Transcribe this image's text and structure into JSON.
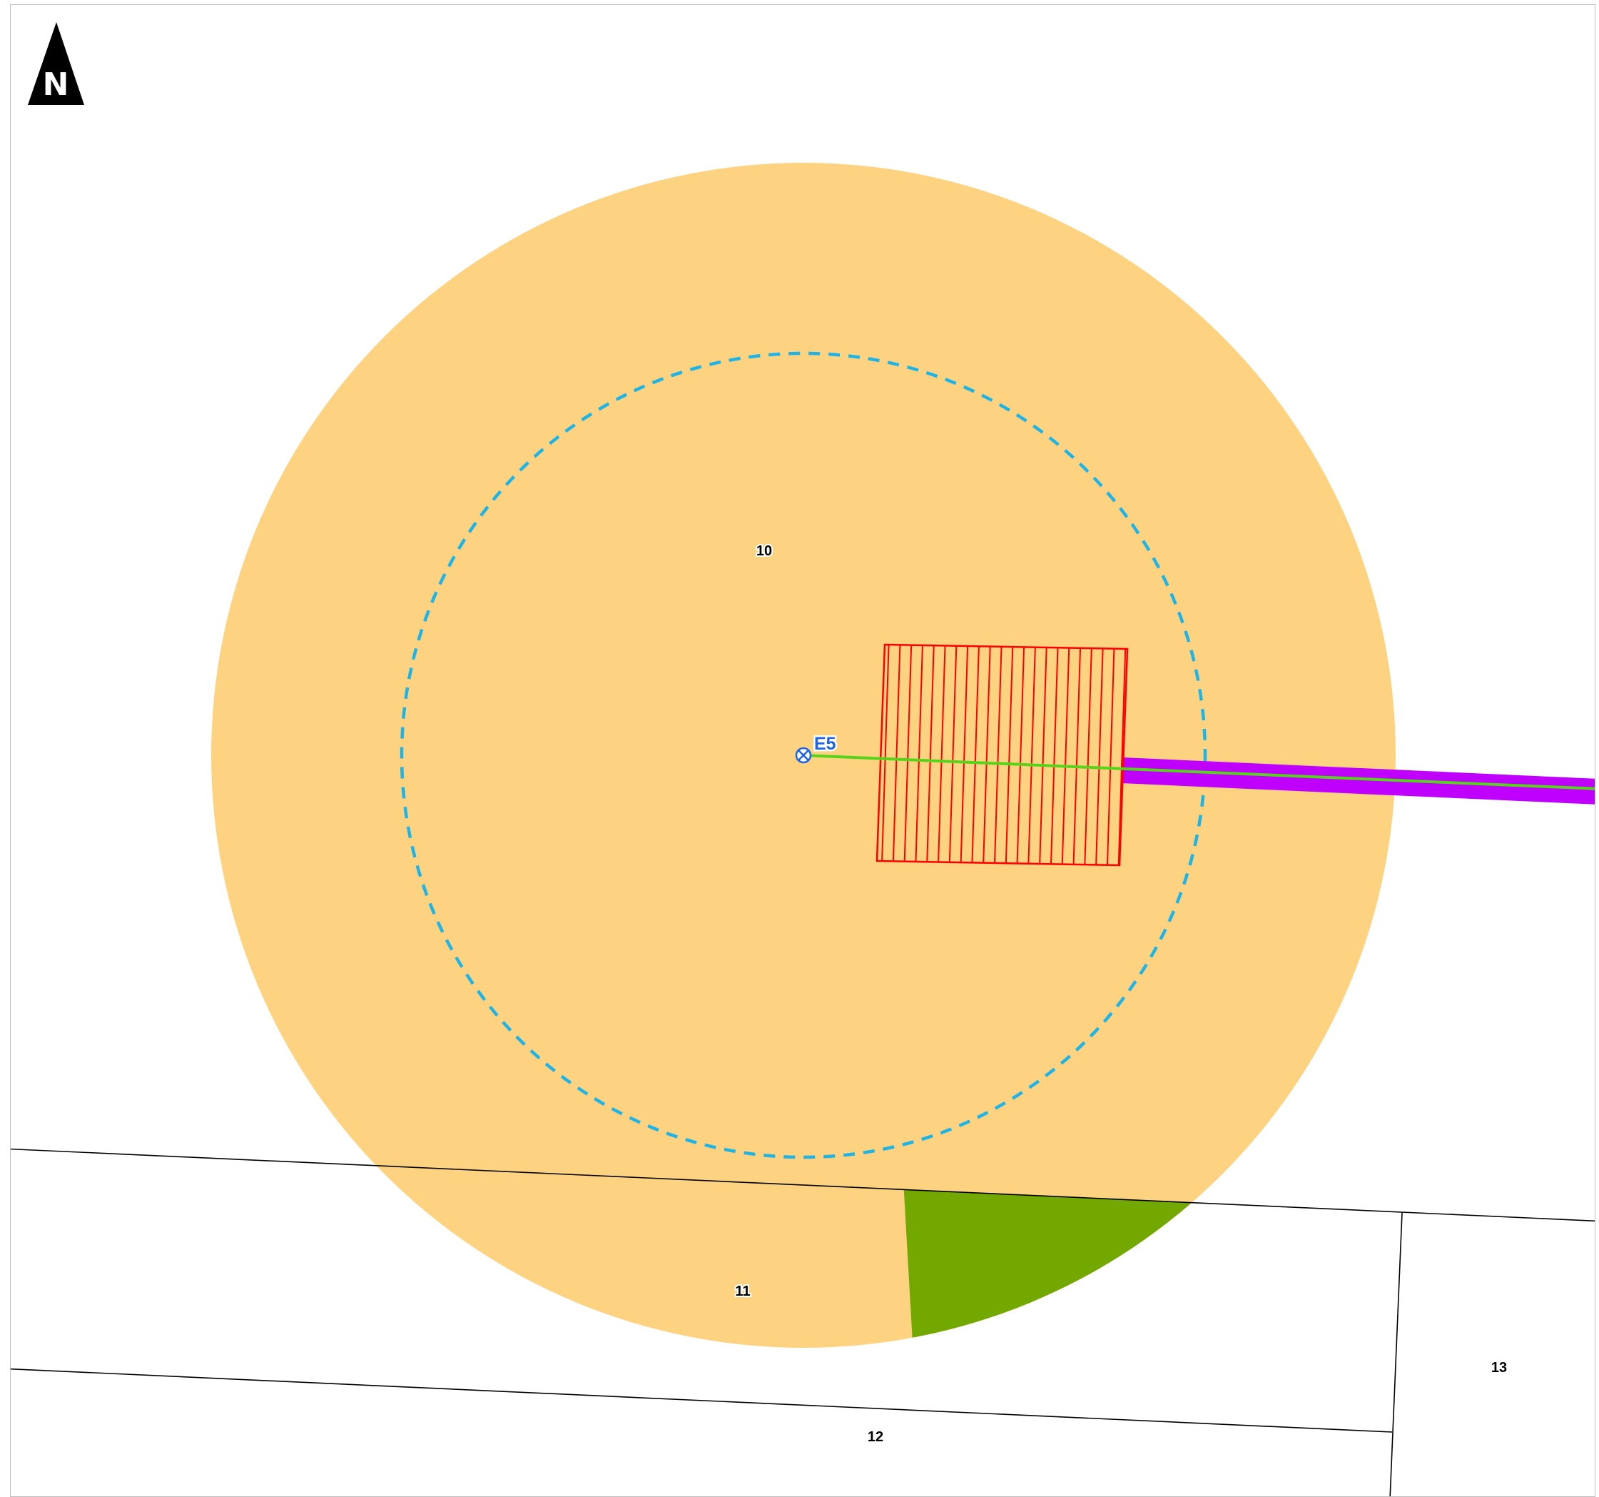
{
  "north_arrow": {
    "letter": "N",
    "icon": "north-arrow-icon"
  },
  "parcels": [
    {
      "id": "parcel-10",
      "label": "10"
    },
    {
      "id": "parcel-11",
      "label": "11"
    },
    {
      "id": "parcel-12",
      "label": "12"
    },
    {
      "id": "parcel-13",
      "label": "13"
    }
  ],
  "well": {
    "label": "E5",
    "icon": "well-crosshair-icon"
  },
  "colors": {
    "buffer_outer": "#FDD281",
    "buffer_inner_dashed": "#1EB4E6",
    "hatched_area": "#FF0000",
    "green_area": "#72A800",
    "pipeline_band": "#C000FF",
    "pipeline_line": "#55D41A",
    "well_symbol": "#1E64E6",
    "parcel_lines": "#000000"
  }
}
